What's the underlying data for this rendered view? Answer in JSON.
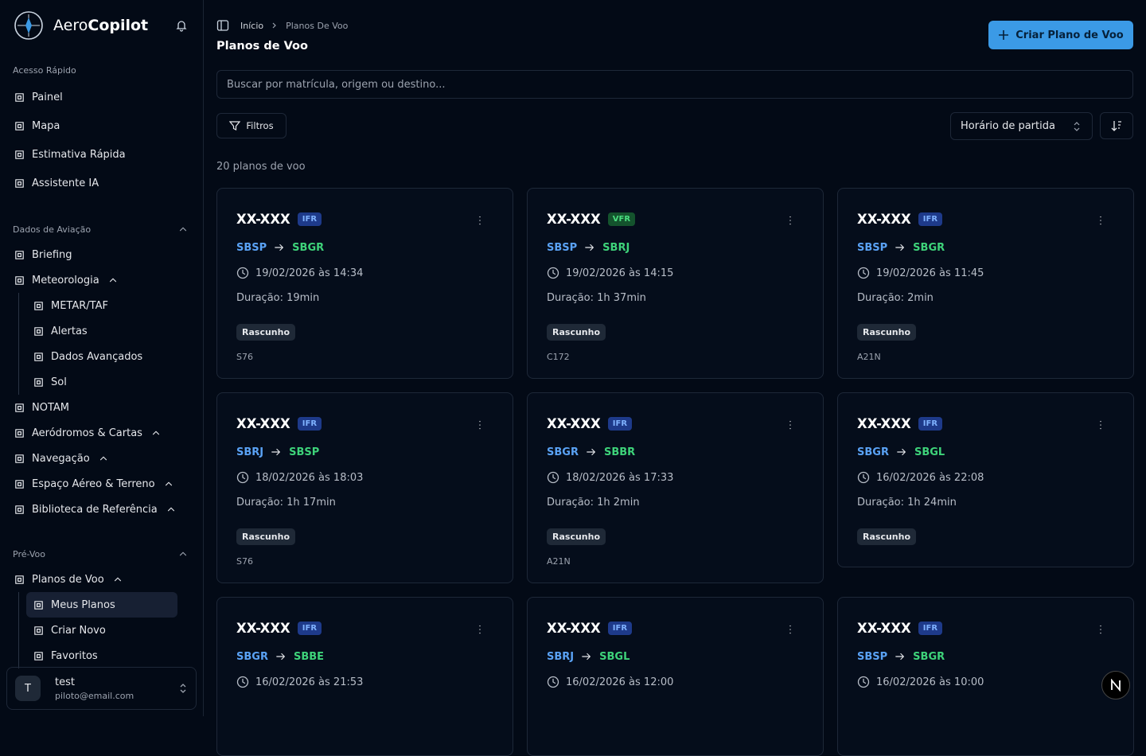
{
  "sidebar": {
    "brand": {
      "prefix": "Aero",
      "suffix": "Copilot"
    },
    "sections": [
      {
        "title": "Acesso Rápido",
        "items": [
          {
            "label": "Painel"
          },
          {
            "label": "Mapa"
          },
          {
            "label": "Estimativa Rápida"
          },
          {
            "label": "Assistente IA"
          }
        ]
      },
      {
        "title": "Dados de Aviação",
        "collapsible": true,
        "items": [
          {
            "label": "Briefing"
          },
          {
            "label": "Meteorologia",
            "expandable": true,
            "children": [
              {
                "label": "METAR/TAF"
              },
              {
                "label": "Alertas"
              },
              {
                "label": "Dados Avançados"
              },
              {
                "label": "Sol"
              }
            ]
          },
          {
            "label": "NOTAM"
          },
          {
            "label": "Aeródromos & Cartas",
            "expandable": true
          },
          {
            "label": "Navegação",
            "expandable": true
          },
          {
            "label": "Espaço Aéreo & Terreno",
            "expandable": true
          },
          {
            "label": "Biblioteca de Referência",
            "expandable": true
          }
        ]
      },
      {
        "title": "Pré-Voo",
        "collapsible": true,
        "items": [
          {
            "label": "Planos de Voo",
            "expandable": true,
            "children": [
              {
                "label": "Meus Planos",
                "active": true
              },
              {
                "label": "Criar Novo"
              },
              {
                "label": "Favoritos"
              }
            ]
          }
        ]
      }
    ],
    "user": {
      "initial": "T",
      "name": "test",
      "email": "piloto@email.com"
    }
  },
  "header": {
    "breadcrumb": [
      "Início",
      "Planos De Voo"
    ],
    "title": "Planos de Voo",
    "create_button": "Criar Plano de Voo"
  },
  "toolbar": {
    "search_placeholder": "Buscar por matrícula, origem ou destino...",
    "filters_button": "Filtros",
    "sort_select": "Horário de partida"
  },
  "count": "20 planos de voo",
  "cards": [
    {
      "registration": "XX-XXX",
      "rule": "IFR",
      "from": "SBSP",
      "to": "SBGR",
      "departure": "19/02/2026 às 14:34",
      "duration": "Duração: 19min",
      "status": "Rascunho",
      "aircraft": "S76"
    },
    {
      "registration": "XX-XXX",
      "rule": "VFR",
      "from": "SBSP",
      "to": "SBRJ",
      "departure": "19/02/2026 às 14:15",
      "duration": "Duração: 1h 37min",
      "status": "Rascunho",
      "aircraft": "C172"
    },
    {
      "registration": "XX-XXX",
      "rule": "IFR",
      "from": "SBSP",
      "to": "SBGR",
      "departure": "19/02/2026 às 11:45",
      "duration": "Duração: 2min",
      "status": "Rascunho",
      "aircraft": "A21N"
    },
    {
      "registration": "XX-XXX",
      "rule": "IFR",
      "from": "SBRJ",
      "to": "SBSP",
      "departure": "18/02/2026 às 18:03",
      "duration": "Duração: 1h 17min",
      "status": "Rascunho",
      "aircraft": "S76"
    },
    {
      "registration": "XX-XXX",
      "rule": "IFR",
      "from": "SBGR",
      "to": "SBBR",
      "departure": "18/02/2026 às 17:33",
      "duration": "Duração: 1h 2min",
      "status": "Rascunho",
      "aircraft": "A21N"
    },
    {
      "registration": "XX-XXX",
      "rule": "IFR",
      "from": "SBGR",
      "to": "SBGL",
      "departure": "16/02/2026 às 22:08",
      "duration": "Duração: 1h 24min",
      "status": "Rascunho"
    },
    {
      "registration": "XX-XXX",
      "rule": "IFR",
      "from": "SBGR",
      "to": "SBBE",
      "departure": "16/02/2026 às 21:53"
    },
    {
      "registration": "XX-XXX",
      "rule": "IFR",
      "from": "SBRJ",
      "to": "SBGL",
      "departure": "16/02/2026 às 12:00"
    },
    {
      "registration": "XX-XXX",
      "rule": "IFR",
      "from": "SBSP",
      "to": "SBGR",
      "departure": "16/02/2026 às 10:00"
    }
  ]
}
